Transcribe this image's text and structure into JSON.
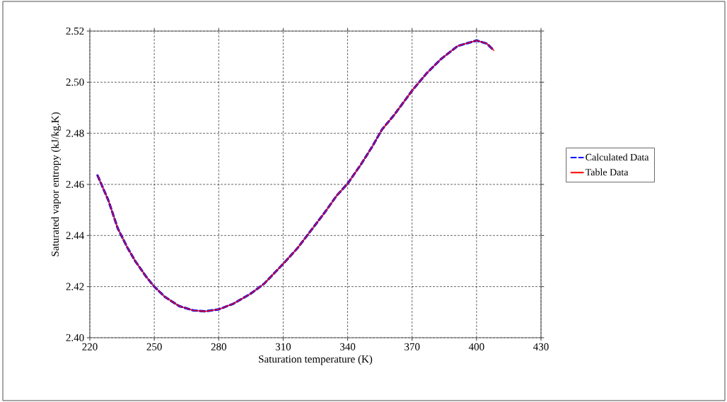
{
  "chart_data": {
    "type": "line",
    "xlabel": "Saturation temperature (K)",
    "ylabel": "Saturated vapor entropy (kJ/kg.K)",
    "x": [
      223.6,
      228.6,
      233,
      237.4,
      241.2,
      246.2,
      250,
      254.9,
      261.5,
      268.1,
      273.6,
      280,
      286.8,
      294.5,
      301.1,
      310,
      316.5,
      322.8,
      329.5,
      335,
      340,
      346.1,
      351.6,
      356,
      361.5,
      370,
      376.9,
      383.5,
      391.3,
      400,
      404.8,
      408.1
    ],
    "series": [
      {
        "name": "Calculated Data",
        "color": "#0000ff",
        "line_style": "dashed",
        "values": [
          2.4635,
          2.4538,
          2.4428,
          2.4354,
          2.4299,
          2.4239,
          2.42,
          2.416,
          2.4124,
          2.4107,
          2.4103,
          2.4111,
          2.4133,
          2.417,
          2.4211,
          2.4289,
          2.4349,
          2.4418,
          2.4492,
          2.4557,
          2.4603,
          2.4677,
          2.475,
          2.4815,
          2.487,
          2.4967,
          2.5036,
          2.5091,
          2.5142,
          2.5163,
          2.5151,
          2.5124
        ]
      },
      {
        "name": "Table Data",
        "color": "#ff0000",
        "line_style": "solid",
        "values": [
          2.4635,
          2.4538,
          2.4428,
          2.4354,
          2.4299,
          2.4239,
          2.42,
          2.416,
          2.4124,
          2.4107,
          2.4103,
          2.4111,
          2.4133,
          2.417,
          2.4211,
          2.4289,
          2.4349,
          2.4418,
          2.4492,
          2.4557,
          2.4603,
          2.4677,
          2.475,
          2.4815,
          2.487,
          2.4967,
          2.5036,
          2.5091,
          2.5142,
          2.5163,
          2.5151,
          2.5124
        ]
      }
    ],
    "xlim": [
      220,
      430
    ],
    "ylim": [
      2.4,
      2.52
    ],
    "xticks": [
      220,
      250,
      280,
      310,
      340,
      370,
      400,
      430
    ],
    "yticks": [
      {
        "value": 2.4,
        "label": "2.40"
      },
      {
        "value": 2.42,
        "label": "2.42"
      },
      {
        "value": 2.44,
        "label": "2.44"
      },
      {
        "value": 2.46,
        "label": "2.46"
      },
      {
        "value": 2.48,
        "label": "2.48"
      },
      {
        "value": 2.5,
        "label": "2.50"
      },
      {
        "value": 2.52,
        "label": "2.52"
      }
    ],
    "grid": true,
    "legend": "right"
  }
}
